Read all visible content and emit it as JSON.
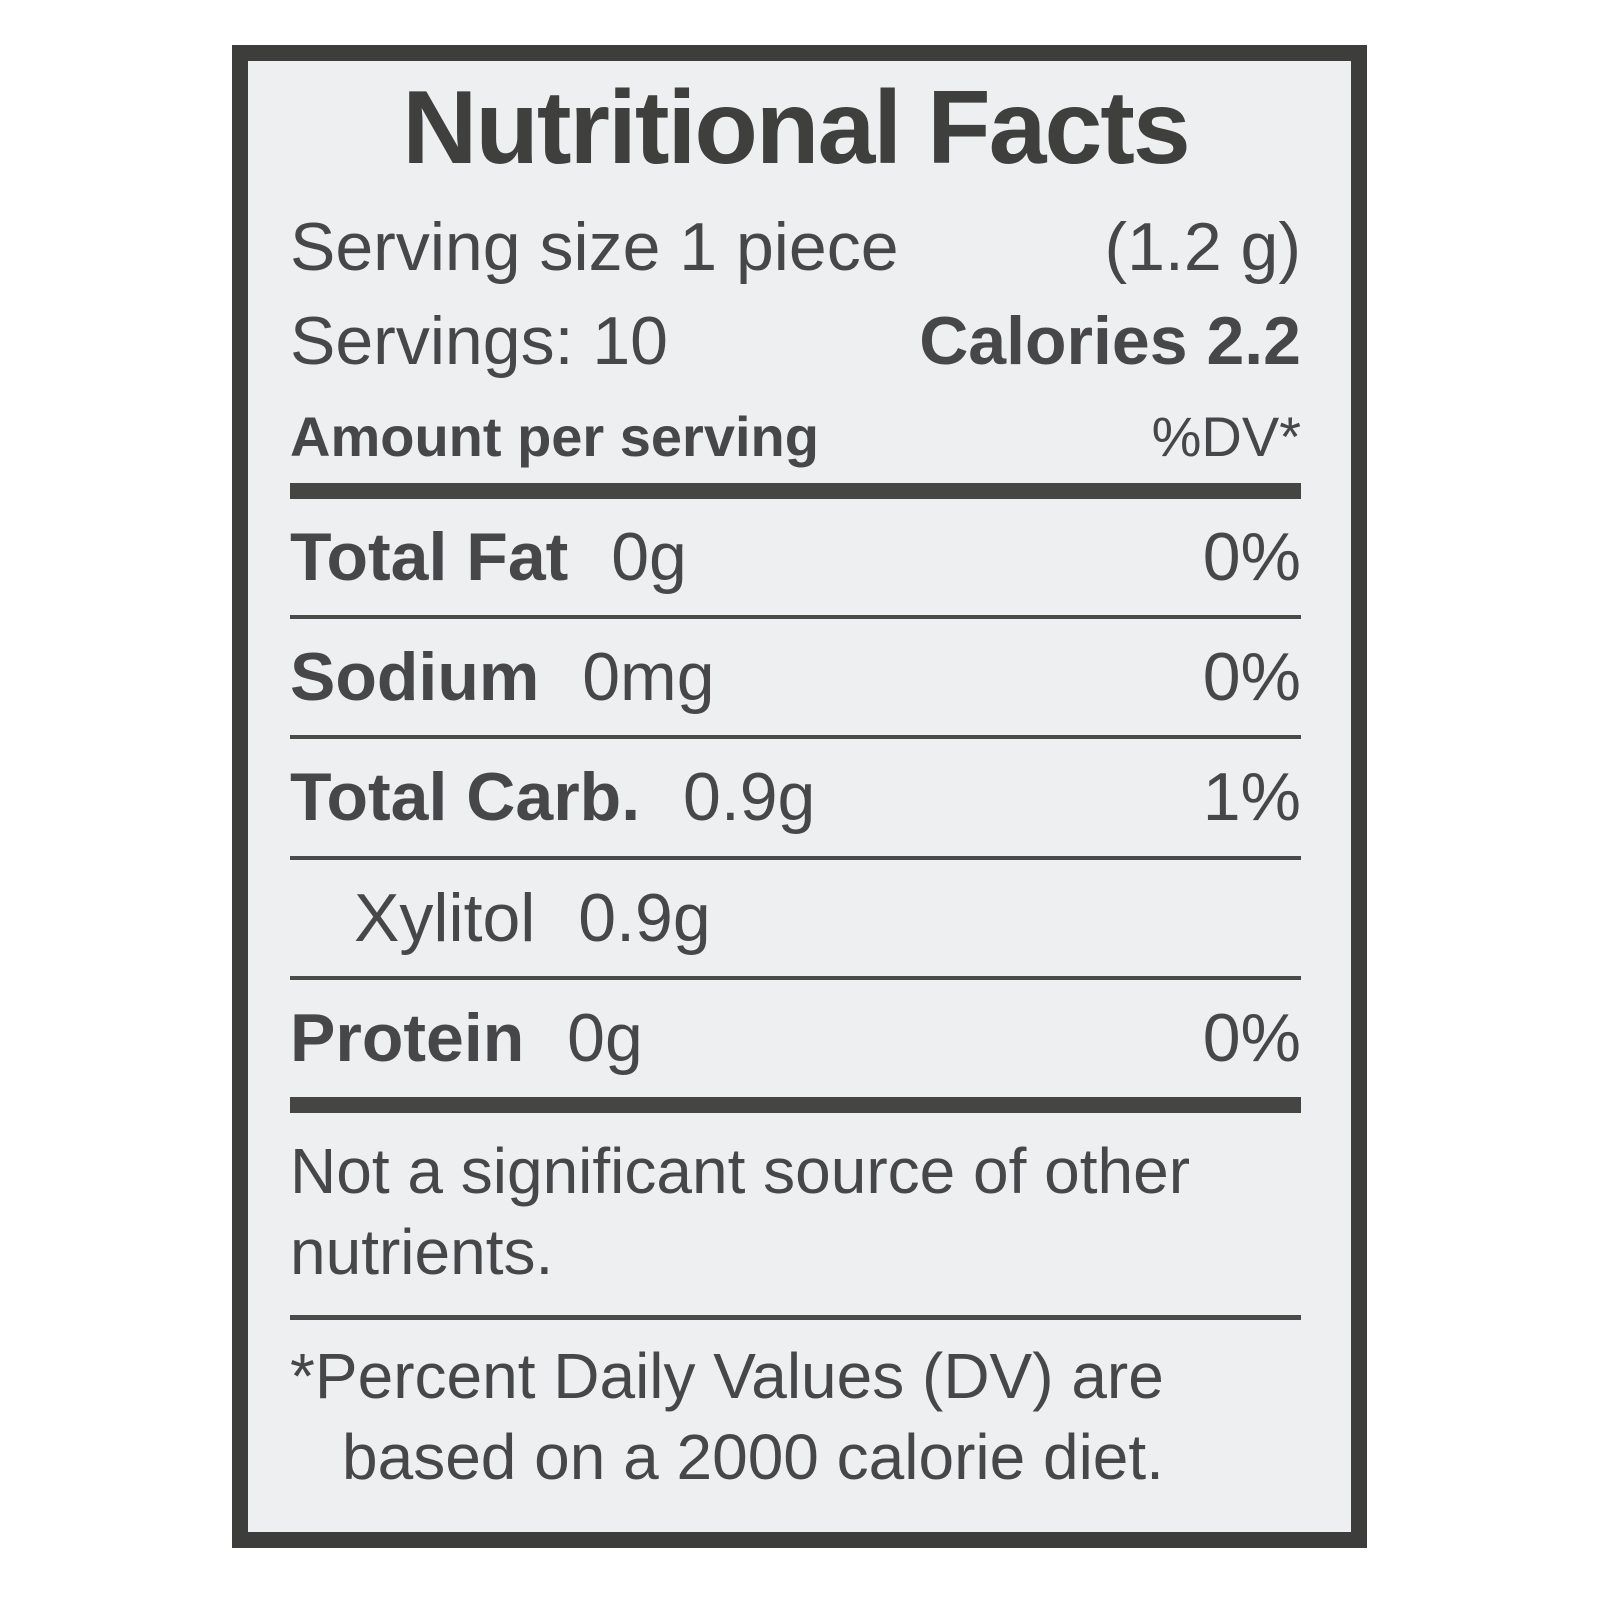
{
  "label": {
    "title": "Nutritional Facts",
    "serving": {
      "text": "Serving size 1 piece",
      "weight": "(1.2 g)"
    },
    "servings": {
      "text": "Servings: 10",
      "calories_label": "Calories",
      "calories_value": "2.2"
    },
    "column_header": {
      "left": "Amount per serving",
      "right": "%DV*"
    },
    "rows": [
      {
        "name": "Total Fat",
        "amount": "0g",
        "dv": "0%"
      },
      {
        "name": "Sodium",
        "amount": "0mg",
        "dv": "0%"
      },
      {
        "name": "Total Carb.",
        "amount": "0.9g",
        "dv": "1%"
      },
      {
        "name": "Xylitol",
        "amount": "0.9g",
        "dv": ""
      },
      {
        "name": "Protein",
        "amount": "0g",
        "dv": "0%"
      }
    ],
    "note": "Not a significant source of other nutrients.",
    "footnote": {
      "line1": "*Percent Daily Values (DV) are",
      "line2": "based on a 2000 calorie diet."
    },
    "colors": {
      "border": "#3d3d3b",
      "background": "#edeff1",
      "ink": "#47474a"
    }
  }
}
